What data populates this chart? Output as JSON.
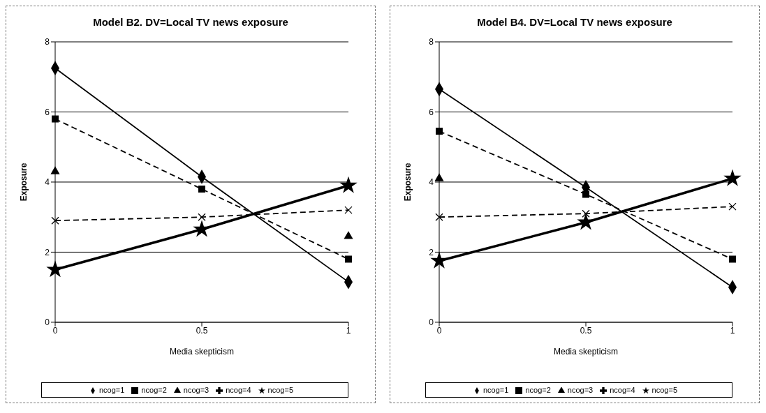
{
  "chart_data": [
    {
      "type": "line",
      "title": "Model B2. DV=Local TV news exposure",
      "xlabel": "Media skepticism",
      "ylabel": "Exposure",
      "categories": [
        "0",
        "0.5",
        "1"
      ],
      "ylim": [
        0,
        8
      ],
      "yticks": [
        0,
        2,
        4,
        6,
        8
      ],
      "grid": "y",
      "legend": "bottom",
      "series": [
        {
          "name": "ncog=1",
          "color": "#000000",
          "values": [
            7.25,
            4.15,
            1.15
          ],
          "marker": "diamond",
          "line_style": "solid"
        },
        {
          "name": "ncog=2",
          "color": "#000000",
          "values": [
            5.8,
            3.8,
            1.8
          ],
          "marker": "square",
          "line_style": "dashed"
        },
        {
          "name": "ncog=3",
          "type": "scatter",
          "color": "#000000",
          "values": [
            4.3,
            null,
            2.45
          ],
          "marker": "triangle"
        },
        {
          "name": "ncog=4",
          "color": "#000000",
          "values": [
            2.9,
            3.0,
            3.2
          ],
          "marker": "cross",
          "line_style": "dashed"
        },
        {
          "name": "ncog=5",
          "color": "#000000",
          "values": [
            1.5,
            2.65,
            3.9
          ],
          "marker": "star",
          "line_style": "solid"
        }
      ]
    },
    {
      "type": "line",
      "title": "Model B4. DV=Local TV news exposure",
      "xlabel": "Media skepticism",
      "ylabel": "Exposure",
      "categories": [
        "0",
        "0.5",
        "1"
      ],
      "ylim": [
        0,
        8
      ],
      "yticks": [
        0,
        2,
        4,
        6,
        8
      ],
      "grid": "y",
      "legend": "bottom",
      "series": [
        {
          "name": "ncog=1",
          "color": "#000000",
          "values": [
            6.65,
            3.85,
            1.0
          ],
          "marker": "diamond",
          "line_style": "solid"
        },
        {
          "name": "ncog=2",
          "color": "#000000",
          "values": [
            5.45,
            3.65,
            1.8
          ],
          "marker": "square",
          "line_style": "dashed"
        },
        {
          "name": "ncog=3",
          "type": "scatter",
          "color": "#000000",
          "values": [
            4.1,
            null,
            null
          ],
          "marker": "triangle"
        },
        {
          "name": "ncog=4",
          "color": "#000000",
          "values": [
            3.0,
            3.1,
            3.3
          ],
          "marker": "cross",
          "line_style": "dashed"
        },
        {
          "name": "ncog=5",
          "color": "#000000",
          "values": [
            1.75,
            2.85,
            4.1
          ],
          "marker": "star",
          "line_style": "solid"
        }
      ]
    }
  ]
}
